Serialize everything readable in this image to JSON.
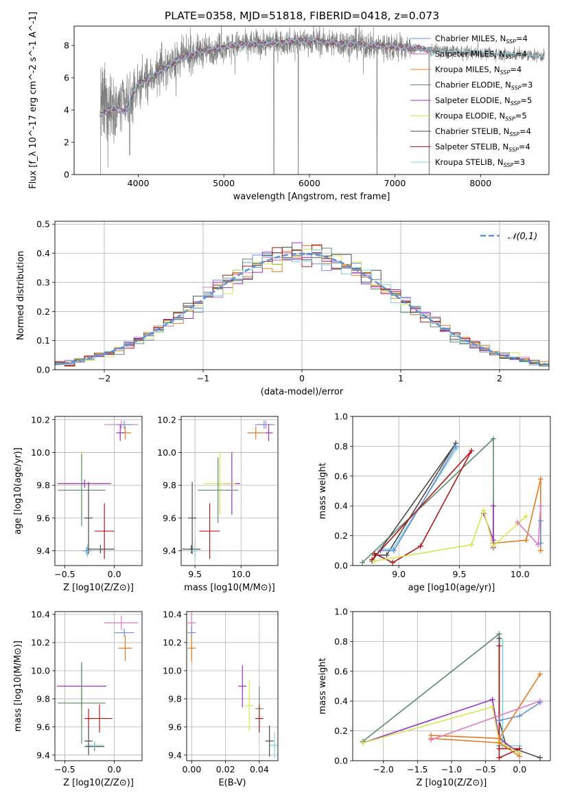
{
  "figure": {
    "title": "PLATE=0358, MJD=51818, FIBERID=0418, z=0.073"
  },
  "series_names": [
    "Chabrier MILES, N_SSP=4",
    "Salpeter MILES, N_SSP=4",
    "Kroupa MILES, N_SSP=4",
    "Chabrier ELODIE, N_SSP=3",
    "Salpeter ELODIE, N_SSP=5",
    "Kroupa ELODIE, N_SSP=5",
    "Chabrier STELIB, N_SSP=4",
    "Salpeter STELIB, N_SSP=4",
    "Kroupa STELIB, N_SSP=3"
  ],
  "colors": [
    "#6b8dd6",
    "#e377c2",
    "#e07b20",
    "#5a8a6a",
    "#9b30c0",
    "#d4e84c",
    "#4a4a4a",
    "#b01818",
    "#7fd0d8"
  ],
  "chart_data": [
    {
      "id": "spectrum",
      "type": "line",
      "title": "PLATE=0358, MJD=51818, FIBERID=0418, z=0.073",
      "xlabel": "wavelength [Angstrom, rest frame]",
      "ylabel": "Flux [f_λ 10^-17 erg cm^-2 s^-1 A^-1]",
      "xlim": [
        3250,
        8800
      ],
      "ylim": [
        0,
        9.2
      ],
      "xticks": [
        4000,
        5000,
        6000,
        7000,
        8000
      ],
      "yticks": [
        0,
        2,
        4,
        6,
        8
      ],
      "grid": false,
      "legend_placement": "top-right",
      "data_color": "#808080",
      "model_color": "#7fd0d8",
      "continuum_x": [
        3550,
        3700,
        3850,
        4000,
        4150,
        4300,
        4500,
        4700,
        4900,
        5100,
        5300,
        5500,
        5700,
        5900,
        6100,
        6300,
        6500,
        6700,
        6900,
        7100,
        7300,
        7500,
        7700,
        7900,
        8100,
        8300,
        8500,
        8750
      ],
      "continuum_y": [
        4.0,
        4.4,
        4.2,
        5.6,
        6.0,
        6.6,
        7.2,
        7.6,
        7.8,
        8.0,
        8.1,
        8.15,
        8.2,
        8.3,
        8.25,
        8.15,
        8.1,
        8.0,
        7.95,
        7.9,
        7.8,
        7.7,
        7.6,
        7.55,
        7.5,
        7.45,
        7.4,
        7.35
      ],
      "noise_start": 7400,
      "noise_amplitude": [
        [
          3550,
          2.5
        ],
        [
          4000,
          1.2
        ],
        [
          5000,
          0.8
        ],
        [
          6000,
          0.7
        ],
        [
          7000,
          0.9
        ],
        [
          7400,
          0.0
        ]
      ],
      "features": [
        [
          3555,
          0.3
        ],
        [
          3900,
          1.2
        ],
        [
          5585,
          0.0
        ],
        [
          5870,
          0.0
        ],
        [
          6790,
          0.0
        ],
        [
          7400,
          0.0
        ]
      ]
    },
    {
      "id": "residual-histogram",
      "type": "bar",
      "xlabel": "(data-model)/error",
      "ylabel": "Normed distribution",
      "xlim": [
        -2.5,
        2.5
      ],
      "ylim": [
        0,
        0.51
      ],
      "xticks": [
        -2,
        -1,
        0,
        1,
        2
      ],
      "yticks": [
        0.0,
        0.1,
        0.2,
        0.3,
        0.4,
        0.5
      ],
      "grid": true,
      "legend_placement": "top-right",
      "bin_width": 0.1,
      "legend": "𝒩(0,1)",
      "curve_color": "#5b8fd6"
    },
    {
      "id": "Z-age",
      "type": "scatter",
      "xlabel": "Z [log10(Z/Z⊙)]",
      "ylabel": "age  [log10(age/yr)]",
      "xlim": [
        -0.6,
        0.28
      ],
      "ylim": [
        9.31,
        10.22
      ],
      "xticks": [
        -0.5,
        0.0
      ],
      "yticks": [
        9.4,
        9.6,
        9.8,
        10.0,
        10.2
      ],
      "grid": true,
      "points": [
        {
          "s": 1,
          "x": 0.07,
          "y": 10.17,
          "xerr": 0.17,
          "yerr": 0.0
        },
        {
          "s": 0,
          "x": 0.1,
          "y": 10.17,
          "xerr": 0.08,
          "yerr": 0.0
        },
        {
          "s": 2,
          "x": 0.11,
          "y": 10.12,
          "xerr": 0.06,
          "yerr": 0.04
        },
        {
          "s": 4,
          "x": 0.06,
          "y": 10.12,
          "xerr": 0.0,
          "yerr": 0.05
        },
        {
          "s": 5,
          "x": -0.33,
          "y": 9.81,
          "xerr": 0.25,
          "yerr": 0.2
        },
        {
          "s": 3,
          "x": -0.33,
          "y": 9.77,
          "xerr": 0.24,
          "yerr": 0.22
        },
        {
          "s": 4,
          "x": -0.3,
          "y": 9.81,
          "xerr": 0.27,
          "yerr": 0.0
        },
        {
          "s": 7,
          "x": -0.1,
          "y": 9.52,
          "xerr": 0.1,
          "yerr": 0.17
        },
        {
          "s": 6,
          "x": -0.26,
          "y": 9.6,
          "xerr": 0.0,
          "yerr": 0.22
        },
        {
          "s": 6,
          "x": -0.14,
          "y": 9.41,
          "xerr": 0.14,
          "yerr": 0.0
        },
        {
          "s": 8,
          "x": -0.27,
          "y": 9.4,
          "xerr": 0.0,
          "yerr": 0.04
        },
        {
          "s": 0,
          "x": -0.28,
          "y": 9.4,
          "xerr": 0.0,
          "yerr": 0.0
        }
      ]
    },
    {
      "id": "mass-age",
      "type": "scatter",
      "xlabel": "mass [log10(M/M⊙)]",
      "ylabel": "",
      "xlim": [
        9.35,
        10.4
      ],
      "ylim": [
        9.31,
        10.22
      ],
      "xticks": [
        9.5,
        10.0
      ],
      "yticks": [
        9.4,
        9.6,
        9.8,
        10.0,
        10.2
      ],
      "grid": true,
      "points": [
        {
          "s": 1,
          "x": 10.27,
          "y": 10.17,
          "xerr": 0.1,
          "yerr": 0.0
        },
        {
          "s": 0,
          "x": 10.25,
          "y": 10.17,
          "xerr": 0.1,
          "yerr": 0.0
        },
        {
          "s": 2,
          "x": 10.16,
          "y": 10.12,
          "xerr": 0.09,
          "yerr": 0.04
        },
        {
          "s": 4,
          "x": 10.3,
          "y": 10.12,
          "xerr": 0.0,
          "yerr": 0.05
        },
        {
          "s": 4,
          "x": 9.9,
          "y": 9.81,
          "xerr": 0.09,
          "yerr": 0.19
        },
        {
          "s": 5,
          "x": 9.77,
          "y": 9.81,
          "xerr": 0.17,
          "yerr": 0.19
        },
        {
          "s": 3,
          "x": 9.75,
          "y": 9.77,
          "xerr": 0.22,
          "yerr": 0.2
        },
        {
          "s": 7,
          "x": 9.66,
          "y": 9.52,
          "xerr": 0.11,
          "yerr": 0.17
        },
        {
          "s": 6,
          "x": 9.47,
          "y": 9.6,
          "xerr": 0.0,
          "yerr": 0.22
        },
        {
          "s": 6,
          "x": 9.46,
          "y": 9.41,
          "xerr": 0.1,
          "yerr": 0.0
        },
        {
          "s": 8,
          "x": 9.5,
          "y": 9.4,
          "xerr": 0.0,
          "yerr": 0.05
        }
      ]
    },
    {
      "id": "age-weight",
      "type": "line",
      "xlabel": "age  [log10(age/yr)]",
      "ylabel": "mass weight",
      "xlim": [
        8.62,
        10.25
      ],
      "ylim": [
        0,
        1.0
      ],
      "xticks": [
        9.0,
        9.5,
        10.0
      ],
      "yticks": [
        0.0,
        0.2,
        0.4,
        0.6,
        0.8,
        1.0
      ],
      "grid": true,
      "series": [
        {
          "s": 3,
          "x": [
            8.7,
            9.78,
            9.78
          ],
          "y": [
            0.02,
            0.85,
            0.13
          ]
        },
        {
          "s": 6,
          "x": [
            8.8,
            8.9,
            9.47,
            8.78
          ],
          "y": [
            0.07,
            0.07,
            0.82,
            0.03
          ]
        },
        {
          "s": 8,
          "x": [
            8.85,
            8.95,
            9.48
          ],
          "y": [
            0.11,
            0.11,
            0.79
          ]
        },
        {
          "s": 0,
          "x": [
            8.85,
            8.96,
            9.47
          ],
          "y": [
            0.1,
            0.1,
            0.8
          ]
        },
        {
          "s": 7,
          "x": [
            8.8,
            8.95,
            9.18,
            9.6,
            8.78
          ],
          "y": [
            0.08,
            0.02,
            0.13,
            0.77,
            0.04
          ]
        },
        {
          "s": 2,
          "x": [
            9.78,
            10.05,
            10.17,
            10.17
          ],
          "y": [
            0.15,
            0.17,
            0.58,
            0.1
          ]
        },
        {
          "s": 4,
          "x": [
            9.7,
            9.78,
            9.78,
            9.78
          ],
          "y": [
            0.35,
            0.17,
            0.4,
            0.12
          ]
        },
        {
          "s": 5,
          "x": [
            8.8,
            9.6,
            9.7,
            9.78,
            9.98,
            10.05
          ],
          "y": [
            0.03,
            0.14,
            0.37,
            0.13,
            0.28,
            0.33
          ]
        },
        {
          "s": 1,
          "x": [
            9.98,
            10.15,
            10.17
          ],
          "y": [
            0.29,
            0.14,
            0.4
          ]
        },
        {
          "s": 0,
          "x": [
            10.17,
            10.17
          ],
          "y": [
            0.15,
            0.3
          ]
        }
      ]
    },
    {
      "id": "Z-mass",
      "type": "scatter",
      "xlabel": "Z [log10(Z/Z⊙)]",
      "ylabel": "mass [log10(M/M⊙)]",
      "xlim": [
        -0.6,
        0.28
      ],
      "ylim": [
        9.36,
        10.42
      ],
      "xticks": [
        -0.5,
        0.0
      ],
      "yticks": [
        9.4,
        9.6,
        9.8,
        10.0,
        10.2,
        10.4
      ],
      "grid": true,
      "points": [
        {
          "s": 1,
          "x": 0.07,
          "y": 10.34,
          "xerr": 0.17,
          "yerr": 0.05
        },
        {
          "s": 0,
          "x": 0.1,
          "y": 10.27,
          "xerr": 0.1,
          "yerr": 0.0
        },
        {
          "s": 2,
          "x": 0.11,
          "y": 10.16,
          "xerr": 0.07,
          "yerr": 0.09
        },
        {
          "s": 4,
          "x": -0.33,
          "y": 9.89,
          "xerr": 0.25,
          "yerr": 0.15
        },
        {
          "s": 5,
          "x": -0.33,
          "y": 9.77,
          "xerr": 0.23,
          "yerr": 0.17
        },
        {
          "s": 3,
          "x": -0.33,
          "y": 9.77,
          "xerr": 0.24,
          "yerr": 0.29
        },
        {
          "s": 7,
          "x": -0.15,
          "y": 9.66,
          "xerr": 0.13,
          "yerr": 0.1
        },
        {
          "s": 7,
          "x": -0.26,
          "y": 9.66,
          "xerr": 0.0,
          "yerr": 0.07
        },
        {
          "s": 6,
          "x": -0.2,
          "y": 9.46,
          "xerr": 0.1,
          "yerr": 0.0
        },
        {
          "s": 8,
          "x": -0.2,
          "y": 9.47,
          "xerr": 0.09,
          "yerr": 0.0
        },
        {
          "s": 6,
          "x": -0.26,
          "y": 9.5,
          "xerr": 0.0,
          "yerr": 0.1
        }
      ]
    },
    {
      "id": "ebv-mass",
      "type": "scatter",
      "xlabel": "E(B-V)",
      "ylabel": "",
      "xlim": [
        -0.003,
        0.051
      ],
      "ylim": [
        9.36,
        10.42
      ],
      "xticks": [
        0.0,
        0.02,
        0.04
      ],
      "xtick_labels": [
        "0.00",
        "0.02",
        "0.04"
      ],
      "yticks": [
        9.4,
        9.6,
        9.8,
        10.0,
        10.2,
        10.4
      ],
      "grid": true,
      "points": [
        {
          "s": 1,
          "x": 0.0,
          "y": 10.34,
          "xerr": 0.0,
          "yerr": 0.08
        },
        {
          "s": 0,
          "x": 0.0,
          "y": 10.27,
          "xerr": 0.0,
          "yerr": 0.05
        },
        {
          "s": 2,
          "x": 0.0,
          "y": 10.16,
          "xerr": 0.0,
          "yerr": 0.1
        },
        {
          "s": 4,
          "x": 0.03,
          "y": 9.89,
          "xerr": 0.0,
          "yerr": 0.15
        },
        {
          "s": 5,
          "x": 0.034,
          "y": 9.75,
          "xerr": 0.0,
          "yerr": 0.18
        },
        {
          "s": 3,
          "x": 0.04,
          "y": 9.73,
          "xerr": 0.0,
          "yerr": 0.16
        },
        {
          "s": 7,
          "x": 0.04,
          "y": 9.66,
          "xerr": 0.0,
          "yerr": 0.1
        },
        {
          "s": 6,
          "x": 0.046,
          "y": 9.5,
          "xerr": 0.0,
          "yerr": 0.11
        },
        {
          "s": 8,
          "x": 0.049,
          "y": 9.47,
          "xerr": 0.0,
          "yerr": 0.09
        }
      ]
    },
    {
      "id": "Z-weight",
      "type": "line",
      "xlabel": "Z [log10(Z/Z⊙)]",
      "ylabel": "mass weight",
      "xlim": [
        -2.45,
        0.45
      ],
      "ylim": [
        0,
        1.0
      ],
      "xticks": [
        -2.0,
        -1.5,
        -1.0,
        -0.5,
        0.0
      ],
      "yticks": [
        0.0,
        0.2,
        0.4,
        0.6,
        0.8,
        1.0
      ],
      "grid": true,
      "series": [
        {
          "s": 3,
          "x": [
            -2.3,
            -0.3,
            -0.3
          ],
          "y": [
            0.13,
            0.85,
            0.1
          ]
        },
        {
          "s": 6,
          "x": [
            -0.3,
            -0.3,
            -0.2,
            0.3
          ],
          "y": [
            0.82,
            0.27,
            0.1,
            0.02
          ]
        },
        {
          "s": 8,
          "x": [
            -0.25,
            -0.25,
            0.0
          ],
          "y": [
            0.8,
            0.1,
            0.1
          ]
        },
        {
          "s": 7,
          "x": [
            -0.3,
            -0.3,
            0.0,
            -0.3
          ],
          "y": [
            0.77,
            0.02,
            0.08,
            0.08
          ]
        },
        {
          "s": 4,
          "x": [
            -2.3,
            -0.4,
            -0.3,
            0.0
          ],
          "y": [
            0.12,
            0.41,
            0.15,
            0.05
          ]
        },
        {
          "s": 5,
          "x": [
            -2.3,
            -0.4,
            -0.3,
            0.0
          ],
          "y": [
            0.12,
            0.36,
            0.13,
            0.05
          ]
        },
        {
          "s": 2,
          "x": [
            -1.3,
            -0.3,
            0.3
          ],
          "y": [
            0.17,
            0.15,
            0.58
          ]
        },
        {
          "s": 2,
          "x": [
            -1.3,
            -0.3,
            0.0
          ],
          "y": [
            0.15,
            0.12,
            0.03
          ]
        },
        {
          "s": 1,
          "x": [
            -1.3,
            0.3
          ],
          "y": [
            0.14,
            0.4
          ]
        },
        {
          "s": 0,
          "x": [
            -0.3,
            0.0,
            0.3
          ],
          "y": [
            0.27,
            0.3,
            0.39
          ]
        }
      ]
    }
  ]
}
